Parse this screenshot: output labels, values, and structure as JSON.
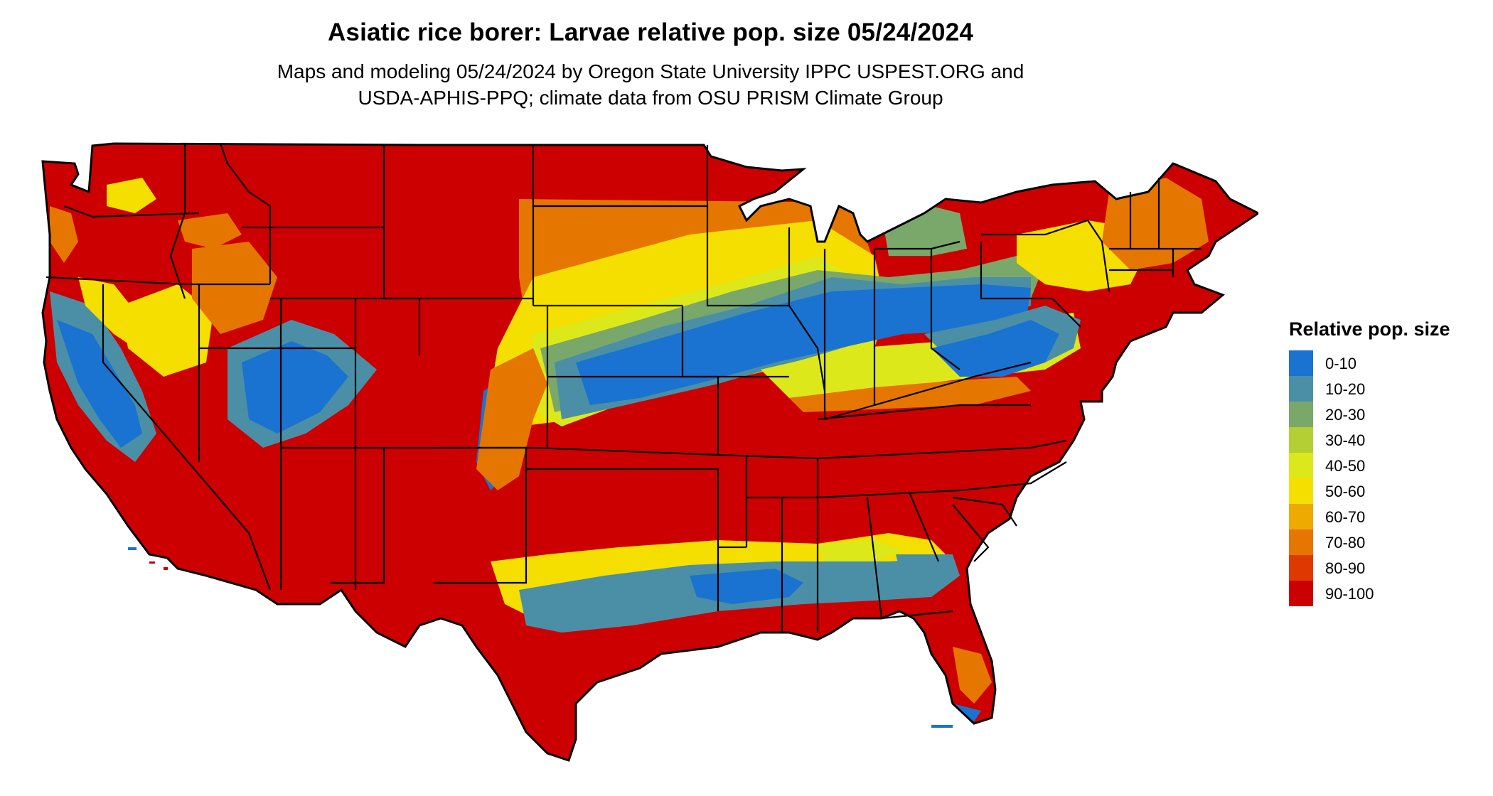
{
  "title": "Asiatic rice borer: Larvae relative pop. size 05/24/2024",
  "subtitle_line1": "Maps and modeling 05/24/2024 by Oregon State University IPPC USPEST.ORG and",
  "subtitle_line2": "USDA-APHIS-PPQ; climate data from OSU PRISM Climate Group",
  "legend": {
    "title": "Relative pop. size",
    "items": [
      {
        "label": "0-10",
        "color": "#1a73d0"
      },
      {
        "label": "10-20",
        "color": "#4a8fa6"
      },
      {
        "label": "20-30",
        "color": "#7aa86a"
      },
      {
        "label": "30-40",
        "color": "#b3cf34"
      },
      {
        "label": "40-50",
        "color": "#dde81a"
      },
      {
        "label": "50-60",
        "color": "#f5df00"
      },
      {
        "label": "60-70",
        "color": "#eeaa00"
      },
      {
        "label": "70-80",
        "color": "#e57600"
      },
      {
        "label": "80-90",
        "color": "#de3a00"
      },
      {
        "label": "90-100",
        "color": "#cc0000"
      }
    ]
  }
}
